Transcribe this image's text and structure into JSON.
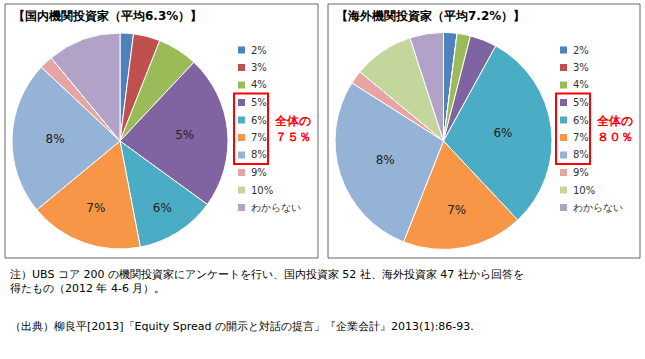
{
  "chart_data": [
    {
      "type": "pie",
      "title": "【国内機関投資家（平均6.3%）】",
      "categories": [
        "2%",
        "3%",
        "4%",
        "5%",
        "6%",
        "7%",
        "8%",
        "9%",
        "10%",
        "わからない"
      ],
      "values": [
        2,
        4,
        6,
        23,
        12,
        17,
        23,
        2,
        0,
        11
      ],
      "colors": [
        "#4f81bd",
        "#c0504d",
        "#9bbb59",
        "#8064a2",
        "#4bacc6",
        "#f79646",
        "#95b3d7",
        "#e6a5a3",
        "#c3d69b",
        "#b3a2c7"
      ],
      "slice_labels": [
        "5%",
        "6%",
        "7%",
        "8%"
      ],
      "annotations": [
        {
          "text": "全体の\n７５％",
          "from": "5%",
          "to": "8%",
          "color": "#ff0000"
        }
      ]
    },
    {
      "type": "pie",
      "title": "【海外機関投資家（平均7.2%）】",
      "categories": [
        "2%",
        "3%",
        "4%",
        "5%",
        "6%",
        "7%",
        "8%",
        "9%",
        "10%",
        "わからない"
      ],
      "values": [
        2,
        0,
        2,
        4,
        30,
        18,
        28,
        2,
        9,
        5
      ],
      "colors": [
        "#4f81bd",
        "#c0504d",
        "#9bbb59",
        "#8064a2",
        "#4bacc6",
        "#f79646",
        "#95b3d7",
        "#e6a5a3",
        "#c3d69b",
        "#b3a2c7"
      ],
      "slice_labels": [
        "6%",
        "7%",
        "8%"
      ],
      "annotations": [
        {
          "text": "全体の\n８０％",
          "from": "5%",
          "to": "8%",
          "color": "#ff0000"
        }
      ]
    }
  ],
  "notes": [
    "注）UBS コア 200 の機関投資家にアンケートを行い、国内投資家 52 社、海外投資家 47 社から回答を\n得たもの（2012 年 4-6 月）。",
    "（出典）柳良平[2013]「Equity Spread の開示と対話の提言」『企業会計』2013(1):86-93."
  ]
}
